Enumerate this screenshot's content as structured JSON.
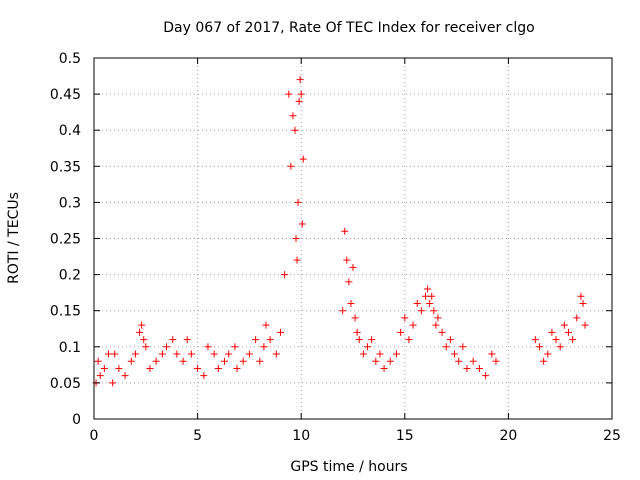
{
  "chart_data": {
    "type": "scatter",
    "title": "Day 067 of 2017, Rate Of TEC Index for receiver clgo",
    "xlabel": "GPS time / hours",
    "ylabel": "ROTI / TECUs",
    "xlim": [
      0,
      25
    ],
    "ylim": [
      0,
      0.5
    ],
    "xticks": [
      "0",
      "5",
      "10",
      "15",
      "20",
      "25"
    ],
    "yticks": [
      "0",
      "0.05",
      "0.1",
      "0.15",
      "0.2",
      "0.25",
      "0.3",
      "0.35",
      "0.4",
      "0.45",
      "0.5"
    ],
    "grid": true,
    "marker": "+",
    "color": "#ff0000",
    "series": [
      {
        "x": [
          0.1,
          0.2,
          0.3,
          0.5,
          0.7,
          0.9,
          1.0,
          1.2,
          1.5,
          1.8,
          2.0,
          2.2,
          2.3,
          2.4,
          2.5,
          2.7,
          3.0,
          3.3,
          3.5,
          3.8,
          4.0,
          4.3,
          4.5,
          4.7,
          5.0,
          5.3,
          5.5,
          5.8,
          6.0,
          6.3,
          6.5,
          6.8,
          6.9,
          7.2,
          7.5,
          7.8,
          8.0,
          8.2,
          8.3,
          8.5,
          8.8,
          9.0,
          9.2,
          9.4,
          9.5,
          9.6,
          9.7,
          9.75,
          9.8,
          9.85,
          9.9,
          9.95,
          10.0,
          10.05,
          10.1,
          12.0,
          12.1,
          12.2,
          12.3,
          12.4,
          12.5,
          12.6,
          12.7,
          12.8,
          13.0,
          13.2,
          13.4,
          13.6,
          13.8,
          14.0,
          14.3,
          14.6,
          14.8,
          15.0,
          15.2,
          15.4,
          15.6,
          15.8,
          16.0,
          16.1,
          16.2,
          16.3,
          16.4,
          16.5,
          16.6,
          16.8,
          17.0,
          17.2,
          17.4,
          17.6,
          17.8,
          18.0,
          18.3,
          18.6,
          18.9,
          19.2,
          19.4,
          21.3,
          21.5,
          21.7,
          21.9,
          22.1,
          22.3,
          22.5,
          22.7,
          22.9,
          23.1,
          23.3,
          23.5,
          23.6,
          23.7
        ],
        "y": [
          0.05,
          0.08,
          0.06,
          0.07,
          0.09,
          0.05,
          0.09,
          0.07,
          0.06,
          0.08,
          0.09,
          0.12,
          0.13,
          0.11,
          0.1,
          0.07,
          0.08,
          0.09,
          0.1,
          0.11,
          0.09,
          0.08,
          0.11,
          0.09,
          0.07,
          0.06,
          0.1,
          0.09,
          0.07,
          0.08,
          0.09,
          0.1,
          0.07,
          0.08,
          0.09,
          0.11,
          0.08,
          0.1,
          0.13,
          0.11,
          0.09,
          0.12,
          0.2,
          0.45,
          0.35,
          0.42,
          0.4,
          0.25,
          0.22,
          0.3,
          0.44,
          0.47,
          0.45,
          0.27,
          0.36,
          0.15,
          0.26,
          0.22,
          0.19,
          0.16,
          0.21,
          0.14,
          0.12,
          0.11,
          0.09,
          0.1,
          0.11,
          0.08,
          0.09,
          0.07,
          0.08,
          0.09,
          0.12,
          0.14,
          0.11,
          0.13,
          0.16,
          0.15,
          0.17,
          0.18,
          0.16,
          0.17,
          0.15,
          0.13,
          0.14,
          0.12,
          0.1,
          0.11,
          0.09,
          0.08,
          0.1,
          0.07,
          0.08,
          0.07,
          0.06,
          0.09,
          0.08,
          0.11,
          0.1,
          0.08,
          0.09,
          0.12,
          0.11,
          0.1,
          0.13,
          0.12,
          0.11,
          0.14,
          0.17,
          0.16,
          0.13
        ]
      }
    ]
  }
}
